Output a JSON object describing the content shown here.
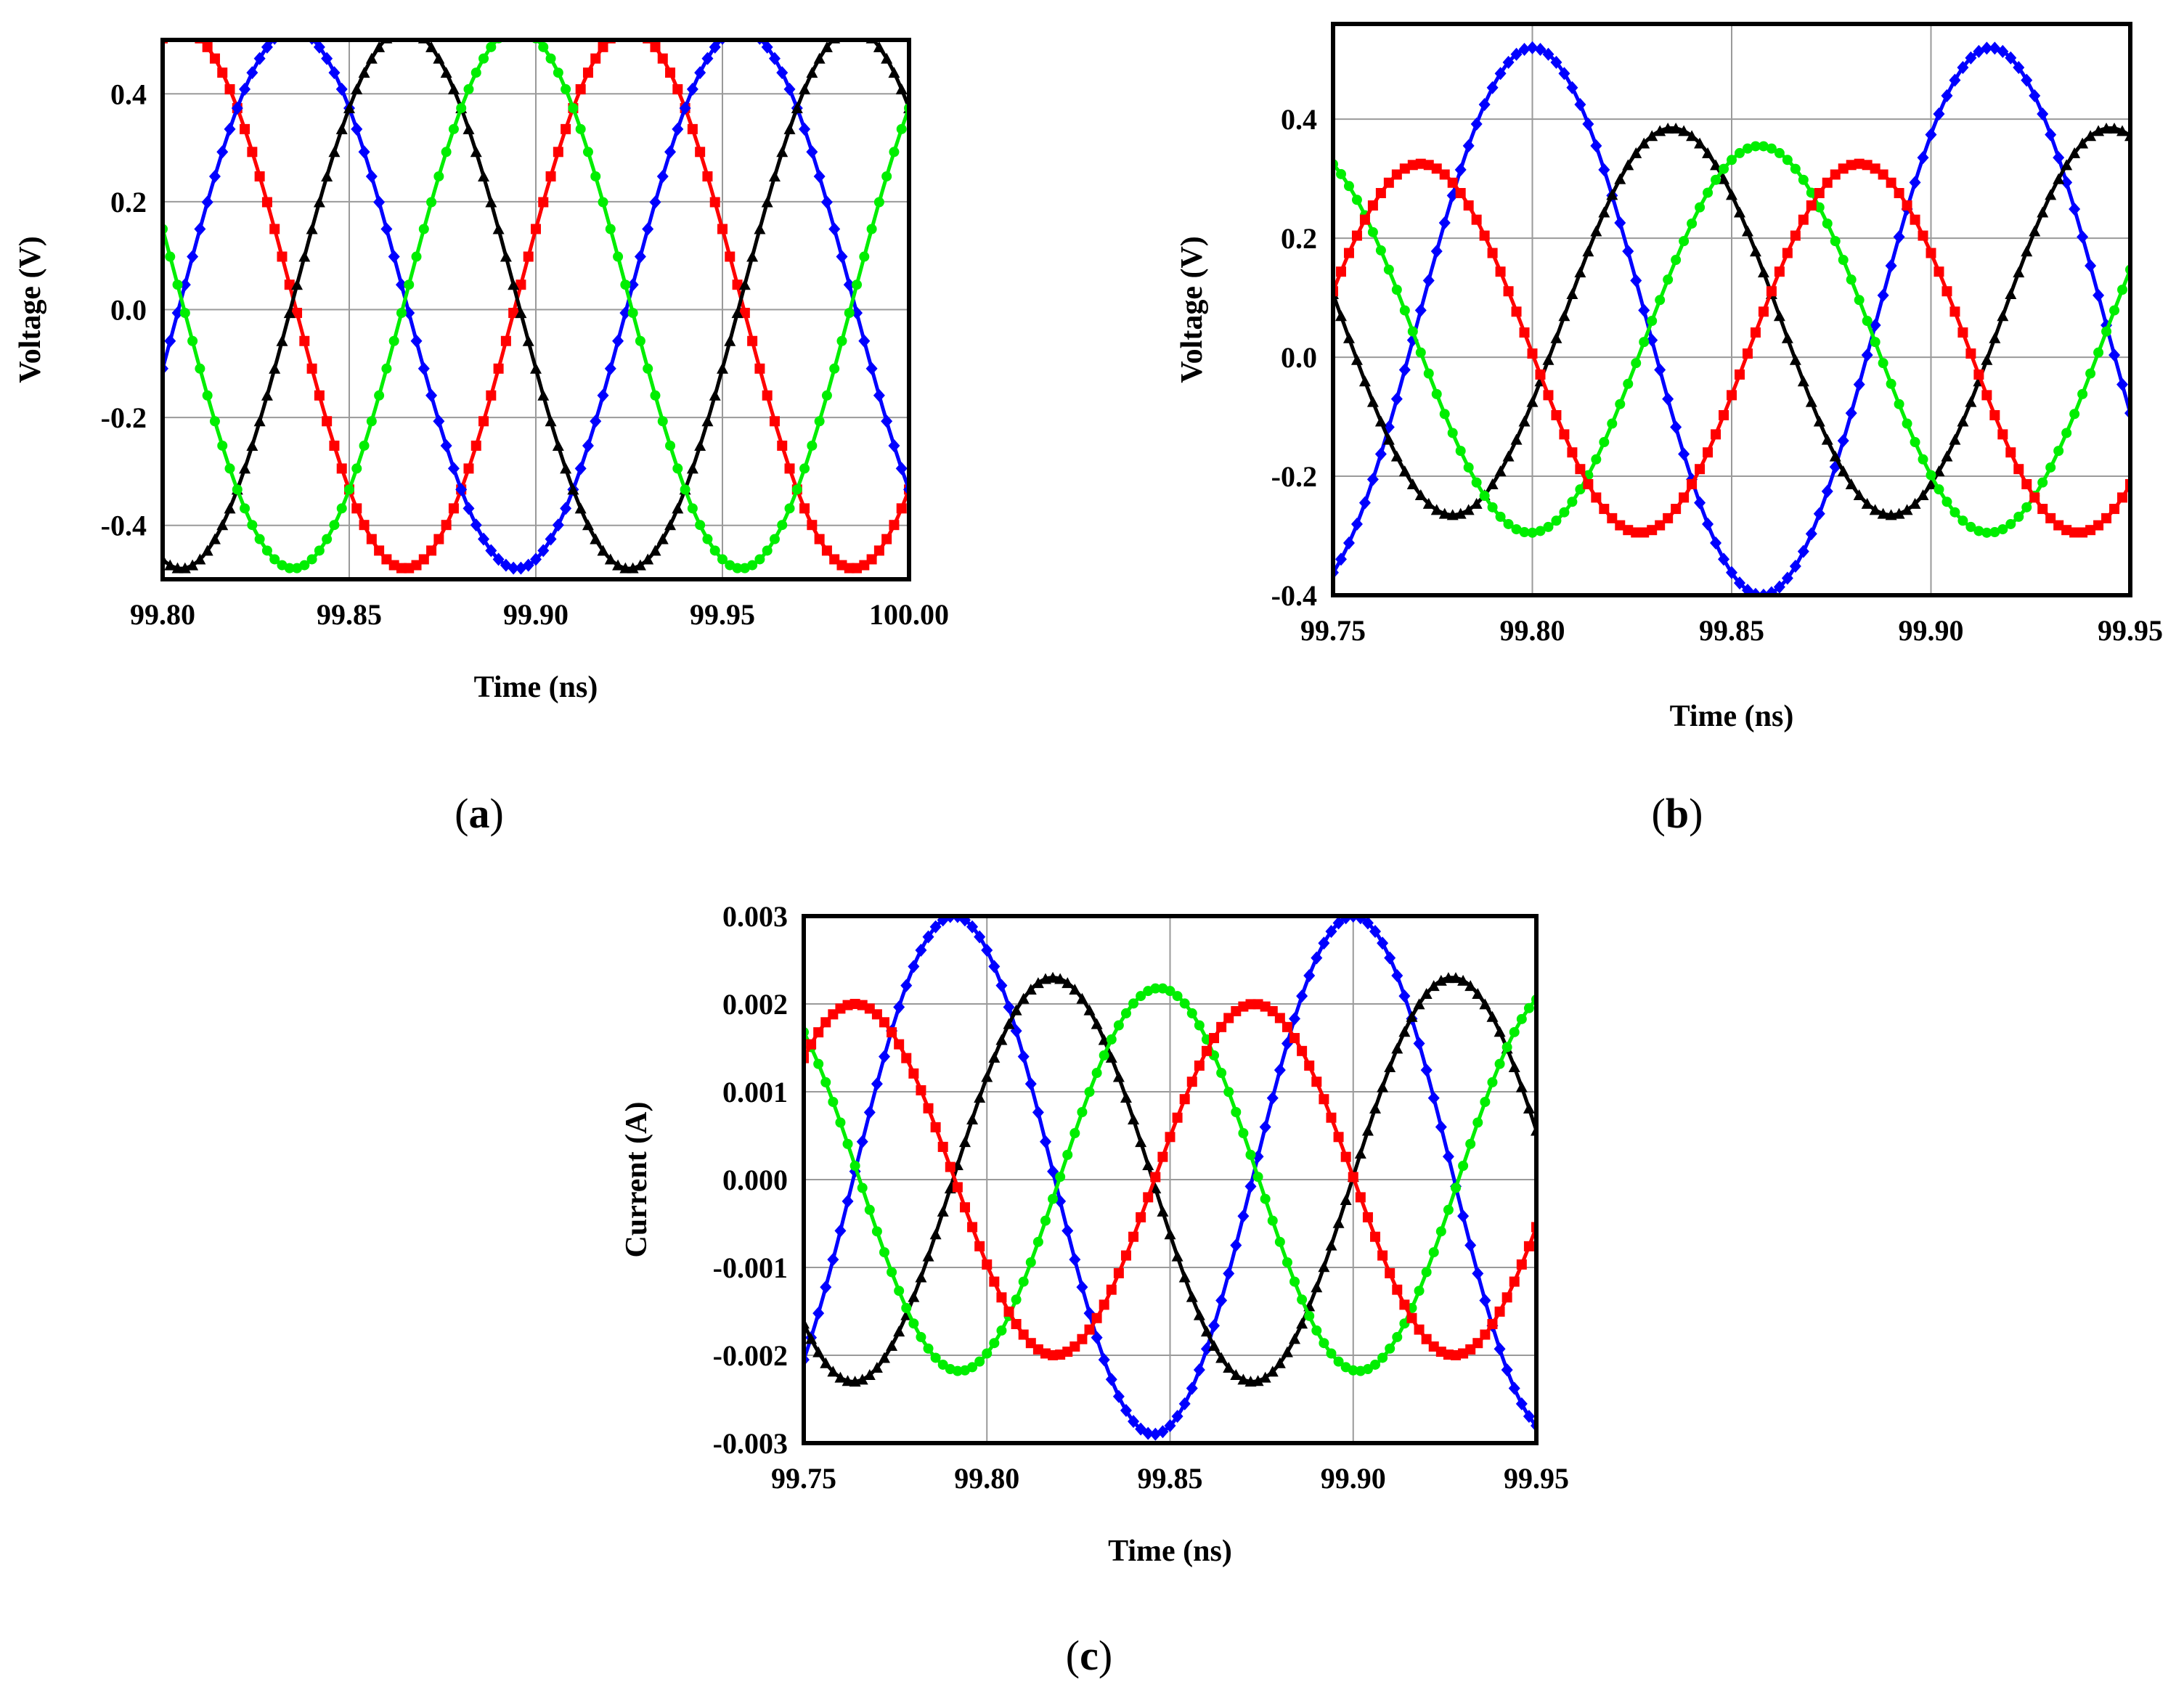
{
  "chart_data": [
    {
      "type": "line",
      "panel": "(a)",
      "xlabel": "Time (ns)",
      "ylabel": "Voltage (V)",
      "xlim": [
        99.8,
        100.0
      ],
      "ylim": [
        -0.5,
        0.5
      ],
      "xticks": [
        "99.80",
        "99.85",
        "99.90",
        "99.95",
        "100.00"
      ],
      "yticks": [
        "-0.4",
        "-0.2",
        "0.0",
        "0.2",
        "0.4"
      ],
      "grid": true,
      "series": [
        {
          "color": "#ff0000",
          "marker": "square",
          "amplitude": 0.5,
          "offset": 0.02,
          "period_ns": 0.12,
          "peak_times_ns": [
            99.805,
            99.925
          ]
        },
        {
          "color": "#0000ff",
          "marker": "diamond",
          "amplitude": 0.5,
          "offset": 0.02,
          "period_ns": 0.12,
          "peak_times_ns": [
            99.835,
            99.955
          ]
        },
        {
          "color": "#000000",
          "marker": "triangle",
          "amplitude": 0.5,
          "offset": 0.02,
          "period_ns": 0.12,
          "peak_times_ns": [
            99.865,
            99.985
          ]
        },
        {
          "color": "#00ee00",
          "marker": "circle",
          "amplitude": 0.5,
          "offset": 0.02,
          "period_ns": 0.12,
          "peak_times_ns": [
            99.895
          ]
        }
      ]
    },
    {
      "type": "line",
      "panel": "(b)",
      "xlabel": "Time (ns)",
      "ylabel": "Voltage (V)",
      "xlim": [
        99.75,
        99.95
      ],
      "ylim": [
        -0.4,
        0.56
      ],
      "xticks": [
        "99.75",
        "99.80",
        "99.85",
        "99.90",
        "99.95"
      ],
      "yticks": [
        "-0.4",
        "-0.2",
        "0.0",
        "0.2",
        "0.4"
      ],
      "grid": true,
      "series": [
        {
          "color": "#0000ff",
          "marker": "diamond",
          "amplitude": 0.46,
          "offset": 0.06,
          "period_ns": 0.115,
          "peak_times_ns": [
            99.8,
            99.915
          ]
        },
        {
          "color": "#000000",
          "marker": "triangle",
          "amplitude": 0.325,
          "offset": 0.06,
          "period_ns": 0.11,
          "peak_times_ns": [
            99.835,
            99.945
          ]
        },
        {
          "color": "#00ee00",
          "marker": "circle",
          "amplitude": 0.325,
          "offset": 0.03,
          "period_ns": 0.115,
          "peak_times_ns": [
            99.857
          ]
        },
        {
          "color": "#ff0000",
          "marker": "square",
          "amplitude": 0.31,
          "offset": 0.015,
          "period_ns": 0.11,
          "peak_times_ns": [
            99.772,
            99.882
          ]
        }
      ]
    },
    {
      "type": "line",
      "panel": "(c)",
      "xlabel": "Time (ns)",
      "ylabel": "Current (A)",
      "xlim": [
        99.75,
        99.95
      ],
      "ylim": [
        -0.003,
        0.003
      ],
      "xticks": [
        "99.75",
        "99.80",
        "99.85",
        "99.90",
        "99.95"
      ],
      "yticks": [
        "-0.003",
        "-0.002",
        "-0.001",
        "0.000",
        "0.001",
        "0.002",
        "0.003"
      ],
      "grid": true,
      "series": [
        {
          "color": "#0000ff",
          "marker": "diamond",
          "amplitude": 0.00295,
          "offset": 5e-05,
          "period_ns": 0.109,
          "peak_times_ns": [
            99.791,
            99.9
          ]
        },
        {
          "color": "#000000",
          "marker": "triangle",
          "amplitude": 0.0023,
          "offset": 0.0,
          "period_ns": 0.109,
          "peak_times_ns": [
            99.818,
            99.927
          ]
        },
        {
          "color": "#00ee00",
          "marker": "circle",
          "amplitude": 0.00218,
          "offset": 0.0,
          "period_ns": 0.109,
          "peak_times_ns": [
            99.738,
            99.847
          ]
        },
        {
          "color": "#ff0000",
          "marker": "square",
          "amplitude": 0.002,
          "offset": 0.0,
          "period_ns": 0.109,
          "peak_times_ns": [
            99.764,
            99.873
          ]
        }
      ]
    }
  ]
}
